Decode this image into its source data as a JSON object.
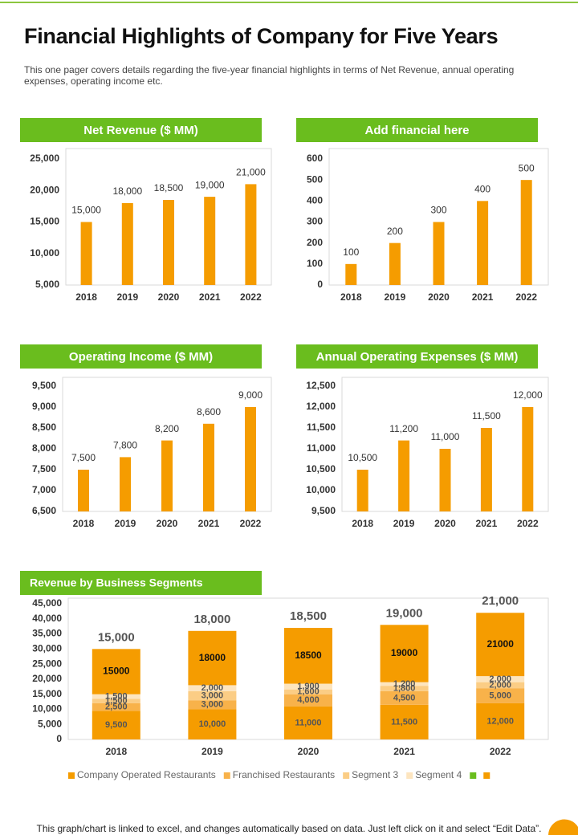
{
  "header": {
    "title": "Financial Highlights of Company for Five Years",
    "subtitle": "This one pager covers details regarding the five-year financial highlights in terms of Net Revenue, annual operating expenses, operating income etc."
  },
  "chart_data": [
    {
      "type": "bar",
      "title": "Net Revenue ($ MM)",
      "categories": [
        "2018",
        "2019",
        "2020",
        "2021",
        "2022"
      ],
      "values": [
        15000,
        18000,
        18500,
        19000,
        21000
      ],
      "value_labels": [
        "15,000",
        "18,000",
        "18,500",
        "19,000",
        "21,000"
      ],
      "color": "#f59c00",
      "ylim": [
        5000,
        25000
      ],
      "yticks": [
        {
          "value": 5000,
          "label": "5,000"
        },
        {
          "value": 10000,
          "label": "10,000"
        },
        {
          "value": 15000,
          "label": "15,000"
        },
        {
          "value": 20000,
          "label": "20,000"
        },
        {
          "value": 25000,
          "label": "25,000"
        }
      ],
      "grid": false
    },
    {
      "type": "bar",
      "title": "Add financial here",
      "categories": [
        "2018",
        "2019",
        "2020",
        "2021",
        "2022"
      ],
      "values": [
        100,
        200,
        300,
        400,
        500
      ],
      "color": "#f59c00",
      "ylim": [
        0,
        600
      ],
      "yticks": [
        0,
        100,
        200,
        300,
        400,
        500,
        600
      ],
      "grid": false
    },
    {
      "type": "bar",
      "title": "Operating Income ($ MM)",
      "categories": [
        "2018",
        "2019",
        "2020",
        "2021",
        "2022"
      ],
      "values": [
        7500,
        7800,
        8200,
        8600,
        9000
      ],
      "value_labels": [
        "7,500",
        "7,800",
        "8,200",
        "8,600",
        "9,000"
      ],
      "color": "#f59c00",
      "ylim": [
        6500,
        9500
      ],
      "yticks": [
        {
          "value": 6500,
          "label": "6,500"
        },
        {
          "value": 7000,
          "label": "7,000"
        },
        {
          "value": 7500,
          "label": "7,500"
        },
        {
          "value": 8000,
          "label": "8,000"
        },
        {
          "value": 8500,
          "label": "8,500"
        },
        {
          "value": 9000,
          "label": "9,000"
        },
        {
          "value": 9500,
          "label": "9,500"
        }
      ],
      "grid": false
    },
    {
      "type": "bar",
      "title": "Annual Operating Expenses ($ MM)",
      "categories": [
        "2018",
        "2019",
        "2020",
        "2021",
        "2022"
      ],
      "values": [
        10500,
        11200,
        11000,
        11500,
        12000
      ],
      "value_labels": [
        "10,500",
        "11,200",
        "11,000",
        "11,500",
        "12,000"
      ],
      "color": "#f59c00",
      "ylim": [
        9500,
        12500
      ],
      "yticks": [
        {
          "value": 9500,
          "label": "9,500"
        },
        {
          "value": 10000,
          "label": "10,000"
        },
        {
          "value": 10500,
          "label": "10,500"
        },
        {
          "value": 11000,
          "label": "11,000"
        },
        {
          "value": 11500,
          "label": "11,500"
        },
        {
          "value": 12000,
          "label": "12,000"
        },
        {
          "value": 12500,
          "label": "12,500"
        }
      ],
      "grid": false
    },
    {
      "type": "stacked_bar",
      "title": "Revenue by Business Segments",
      "categories": [
        "2018",
        "2019",
        "2020",
        "2021",
        "2022"
      ],
      "series": [
        {
          "name": "Company Operated Restaurants",
          "color": "#f59c00",
          "values": [
            9500,
            10000,
            11000,
            11500,
            12000
          ],
          "value_labels": [
            "9,500",
            "10,000",
            "11,000",
            "11,500",
            "12,000"
          ]
        },
        {
          "name": "Franchised Restaurants",
          "color": "#f8b24a",
          "values": [
            2500,
            3000,
            4000,
            4500,
            5000
          ],
          "value_labels": [
            "2,500",
            "3,000",
            "4,000",
            "4,500",
            "5,000"
          ]
        },
        {
          "name": "Segment 3",
          "color": "#fbcd85",
          "values": [
            1500,
            3000,
            1600,
            1800,
            2000
          ],
          "value_labels": [
            "1,500",
            "3,000",
            "1,600",
            "1,800",
            "2,000"
          ]
        },
        {
          "name": "Segment 4",
          "color": "#fde5bf",
          "values": [
            1500,
            2000,
            1900,
            1200,
            2000
          ],
          "value_labels": [
            "1,500",
            "2,000",
            "1,900",
            "1,200",
            "2,000"
          ]
        },
        {
          "name": null,
          "color": "#6abd1e",
          "type": "text",
          "values": [
            15000,
            18000,
            18500,
            19000,
            21000
          ],
          "value_labels": [
            "15,000",
            "18,000",
            "18,500",
            "19,000",
            "21,000"
          ]
        },
        {
          "name": null,
          "color": "#f59c00",
          "values": [
            15000,
            18000,
            18500,
            19000,
            21000
          ]
        }
      ],
      "ylim": [
        0,
        45000
      ],
      "yticks": [
        0,
        {
          "value": 5000,
          "label": "5,000"
        },
        {
          "value": 10000,
          "label": "10,000"
        },
        {
          "value": 15000,
          "label": "15,000"
        },
        {
          "value": 20000,
          "label": "20,000"
        },
        {
          "value": 25000,
          "label": "25,000"
        },
        {
          "value": 30000,
          "label": "30,000"
        },
        {
          "value": 35000,
          "label": "35,000"
        },
        {
          "value": 40000,
          "label": "40,000"
        },
        {
          "value": 45000,
          "label": "45,000"
        }
      ],
      "grid": false,
      "legend": "bottom"
    }
  ],
  "footer": "This graph/chart is linked to excel, and changes automatically based on data. Just left click on it and select “Edit Data”."
}
